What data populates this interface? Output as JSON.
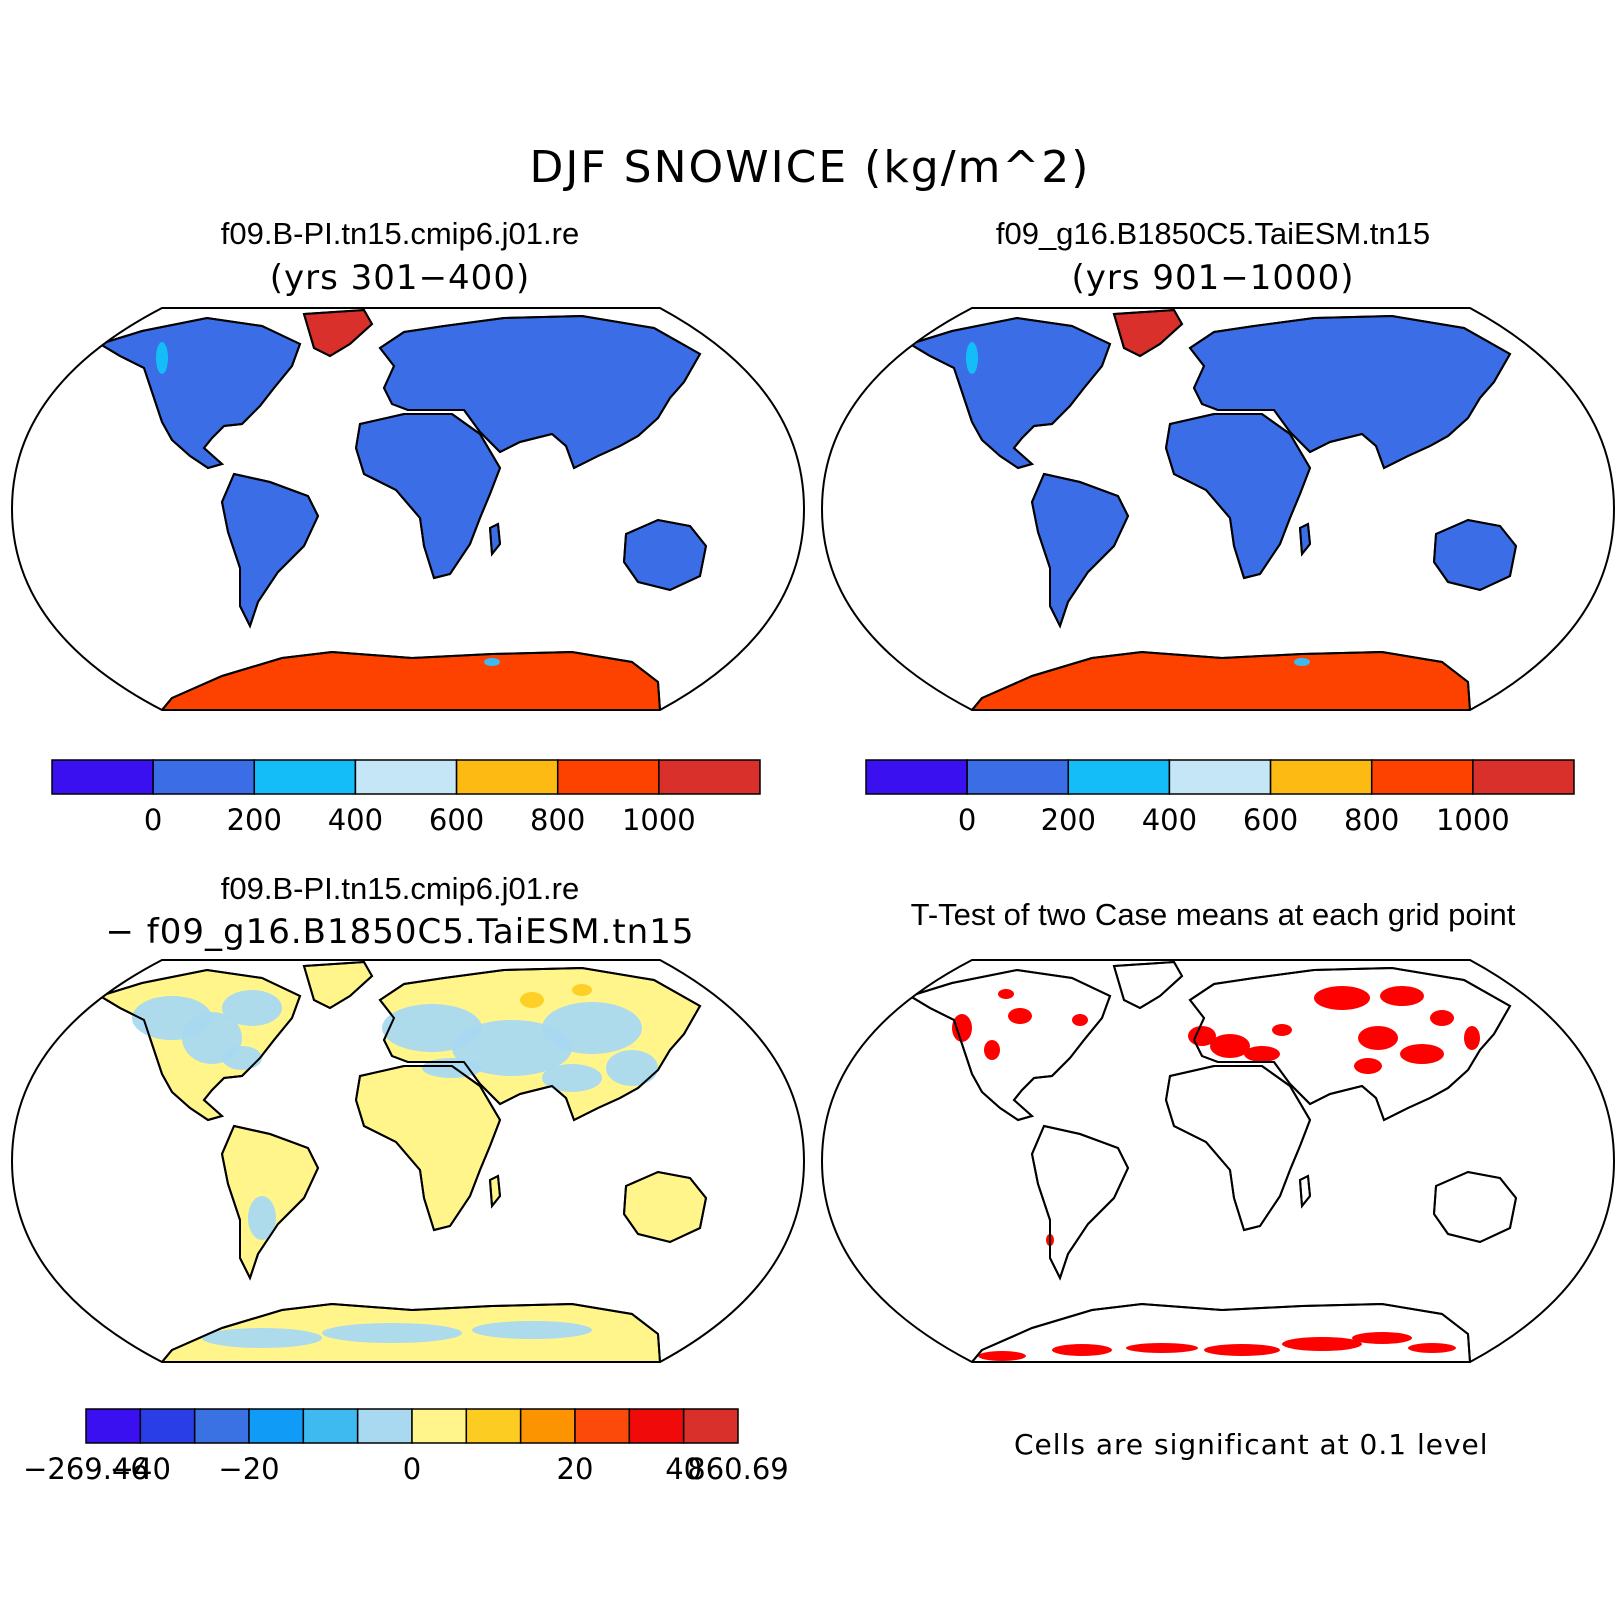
{
  "figure_title": "DJF SNOWICE (kg/m^2)",
  "panels": [
    {
      "title": "f09.B-PI.tn15.cmip6.j01.re",
      "subtitle": "(yrs 301−400)"
    },
    {
      "title": "f09_g16.B1850C5.TaiESM.tn15",
      "subtitle": "(yrs 901−1000)"
    },
    {
      "title": "f09.B-PI.tn15.cmip6.j01.re",
      "subtitle": "− f09_g16.B1850C5.TaiESM.tn15"
    },
    {
      "title": "T-Test of two Case means at each grid point",
      "note": "Cells are significant at 0.1 level"
    }
  ],
  "colorbars": {
    "absolute": {
      "colors": [
        "#3a10f0",
        "#3a6de6",
        "#14bdf8",
        "#c5e6f7",
        "#fdba12",
        "#fd4200",
        "#d9302c"
      ],
      "labels": [
        "0",
        "200",
        "400",
        "600",
        "800",
        "1000"
      ]
    },
    "difference": {
      "colors": [
        "#3a10f0",
        "#2a3ee8",
        "#3a72e4",
        "#0f9bf6",
        "#3fbaf0",
        "#a9d9f1",
        "#fff58a",
        "#fdcc22",
        "#fb9400",
        "#fb4a0a",
        "#f00a0a",
        "#d9302c"
      ],
      "labels": [
        "−269.46",
        "−40",
        "−20",
        "0",
        "20",
        "40",
        "860.69"
      ]
    }
  },
  "map_colors": {
    "land_abs": "#3a6de6",
    "greenland_abs": "#d9302c",
    "antarctica_abs": "#fd4200",
    "land_diff": "#fff58a",
    "diff_negative": "#a9d9f1",
    "diff_positive": "#fdcc22",
    "significant": "#ff0000"
  }
}
